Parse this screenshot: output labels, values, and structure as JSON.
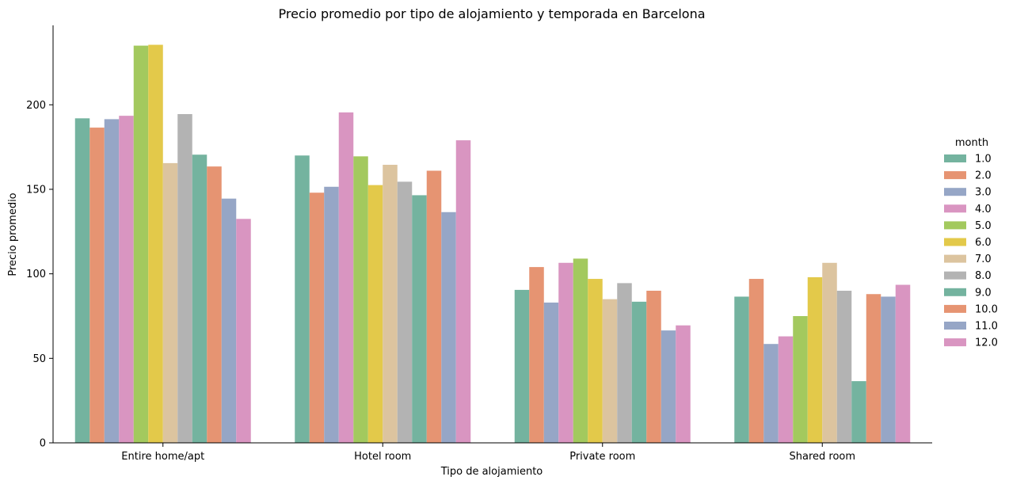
{
  "chart_data": {
    "type": "bar",
    "title": "Precio promedio por tipo de alojamiento y temporada en Barcelona",
    "xlabel": "Tipo de alojamiento",
    "ylabel": "Precio promedio",
    "ylim": [
      0,
      247
    ],
    "yticks": [
      0,
      50,
      100,
      150,
      200
    ],
    "grid": false,
    "legend_position": "right",
    "legend_title": "month",
    "categories": [
      "Entire home/apt",
      "Hotel room",
      "Private room",
      "Shared room"
    ],
    "series": [
      {
        "name": "1.0",
        "color": "#74b39f",
        "values": [
          192,
          170,
          90.5,
          86.5
        ]
      },
      {
        "name": "2.0",
        "color": "#e69472",
        "values": [
          186.5,
          148,
          104,
          97
        ]
      },
      {
        "name": "3.0",
        "color": "#96a6c6",
        "values": [
          191.5,
          151.5,
          83,
          58.5
        ]
      },
      {
        "name": "4.0",
        "color": "#d995c1",
        "values": [
          193.5,
          195.5,
          106.5,
          63
        ]
      },
      {
        "name": "5.0",
        "color": "#a3c95e",
        "values": [
          235,
          169.5,
          109,
          75
        ]
      },
      {
        "name": "6.0",
        "color": "#e3c94a",
        "values": [
          235.5,
          152.5,
          97,
          98
        ]
      },
      {
        "name": "7.0",
        "color": "#dcc49f",
        "values": [
          165.5,
          164.5,
          85,
          106.5
        ]
      },
      {
        "name": "8.0",
        "color": "#b3b3b3",
        "values": [
          194.5,
          154.5,
          94.5,
          90
        ]
      },
      {
        "name": "9.0",
        "color": "#74b39f",
        "values": [
          170.5,
          146.5,
          83.5,
          36.5
        ]
      },
      {
        "name": "10.0",
        "color": "#e69472",
        "values": [
          163.5,
          161,
          90,
          88
        ]
      },
      {
        "name": "11.0",
        "color": "#96a6c6",
        "values": [
          144.5,
          136.5,
          66.5,
          86.5
        ]
      },
      {
        "name": "12.0",
        "color": "#d995c1",
        "values": [
          132.5,
          179,
          69.5,
          93.5
        ]
      }
    ]
  }
}
